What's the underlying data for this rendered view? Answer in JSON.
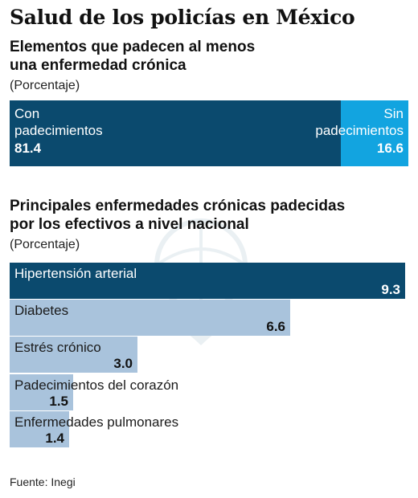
{
  "title": "Salud de los policías en México",
  "section1": {
    "subtitle_line1": "Elementos que padecen al menos",
    "subtitle_line2": "una enfermedad crónica",
    "unit": "(Porcentaje)"
  },
  "section2": {
    "subtitle_line1": "Principales enfermedades crónicas padecidas",
    "subtitle_line2": "por los efectivos a nivel nacional",
    "unit": "(Porcentaje)"
  },
  "source": "Fuente: Inegi",
  "colors": {
    "dark": "#0b4a6e",
    "light_blue": "#12a4e0",
    "pale": "#a9c3dc"
  },
  "chart_data": [
    {
      "type": "bar",
      "orientation": "horizontal-stacked",
      "categories": [
        "Con padecimientos",
        "Sin padecimientos"
      ],
      "values": [
        81.4,
        16.6
      ],
      "category_lines": [
        [
          "Con",
          "padecimientos"
        ],
        [
          "Sin",
          "padecimientos"
        ]
      ],
      "value_labels": [
        "81.4",
        "16.6"
      ],
      "title": "Elementos que padecen al menos una enfermedad crónica",
      "ylabel": "(Porcentaje)",
      "colors": [
        "#0b4a6e",
        "#12a4e0"
      ]
    },
    {
      "type": "bar",
      "orientation": "horizontal",
      "categories": [
        "Hipertensión arterial",
        "Diabetes",
        "Estrés crónico",
        "Padecimientos del corazón",
        "Enfermedades pulmonares"
      ],
      "values": [
        9.3,
        6.6,
        3.0,
        1.5,
        1.4
      ],
      "value_labels": [
        "9.3",
        "6.6",
        "3.0",
        "1.5",
        "1.4"
      ],
      "title": "Principales enfermedades crónicas padecidas por los efectivos a nivel nacional",
      "xlabel": "(Porcentaje)",
      "xlim": [
        0,
        9.3
      ],
      "highlight_first": true
    }
  ]
}
